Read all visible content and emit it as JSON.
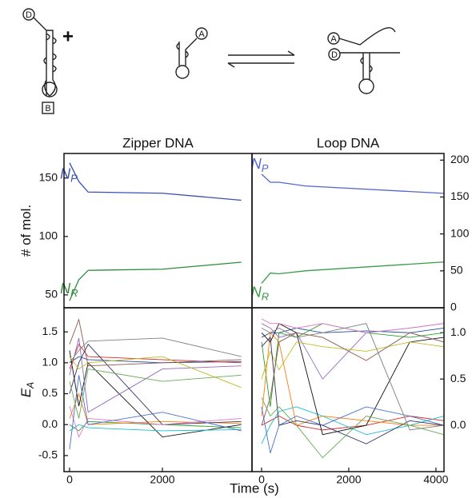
{
  "diagram": {
    "labels": [
      "D",
      "B",
      "A",
      "A",
      "D"
    ],
    "plus": "+"
  },
  "xlabel": "Time (s)",
  "chart_data": [
    {
      "type": "line",
      "title": "Zipper DNA",
      "ylabel": "# of mol.",
      "yaxis": "left",
      "x": [
        0,
        200,
        400,
        2000,
        3700
      ],
      "xlim": [
        -120,
        3930
      ],
      "ylim": [
        39,
        171
      ],
      "yticks": [
        50,
        100,
        150
      ],
      "series": [
        {
          "name": "N",
          "name_sub": "P",
          "color": "#3a4fb0",
          "values": [
            163,
            147,
            138,
            137,
            131
          ]
        },
        {
          "name": "N",
          "name_sub": "R",
          "color": "#2e8b3a",
          "values": [
            45,
            63,
            71,
            72,
            78
          ]
        }
      ]
    },
    {
      "type": "line",
      "title": "Loop DNA",
      "yaxis": "right",
      "x": [
        0,
        200,
        400,
        1000,
        4180
      ],
      "xlim": [
        -220,
        4185
      ],
      "ylim": [
        0,
        209
      ],
      "yticks": [
        0,
        50,
        100,
        150,
        200
      ],
      "series": [
        {
          "name": "N",
          "name_sub": "P",
          "color": "#5566cc",
          "values": [
            181,
            170,
            170,
            165,
            155
          ]
        },
        {
          "name": "N",
          "name_sub": "R",
          "color": "#3c9a48",
          "values": [
            33,
            47,
            46,
            50,
            62
          ]
        }
      ]
    },
    {
      "type": "line",
      "ylabel": "E",
      "ylabel_sub": "A",
      "yaxis": "left",
      "x": [
        0,
        200,
        400,
        2000,
        3700
      ],
      "xlim": [
        -120,
        3930
      ],
      "ylim": [
        -0.76,
        1.89
      ],
      "xticks": [
        0,
        2000
      ],
      "yticks": [
        {
          "value": -0.5,
          "label": "-0.5"
        },
        {
          "value": 0,
          "label": "0.0"
        },
        0.5,
        {
          "value": 1,
          "label": "1.0"
        },
        1.5
      ],
      "series": [
        {
          "color": "#1f4e9c",
          "values": [
            1.0,
            1.1,
            1.05,
            1.0,
            1.02
          ]
        },
        {
          "color": "#d62728",
          "values": [
            0.9,
            1.3,
            1.1,
            1.05,
            1.0
          ]
        },
        {
          "color": "#2ca02c",
          "values": [
            0.0,
            -0.1,
            0.05,
            0.0,
            -0.05
          ]
        },
        {
          "color": "#ff7f0e",
          "values": [
            0.1,
            0.5,
            0.0,
            0.05,
            0.02
          ]
        },
        {
          "color": "#111111",
          "values": [
            1.2,
            0.3,
            1.0,
            -0.2,
            0.0
          ]
        },
        {
          "color": "#9467bd",
          "values": [
            0.8,
            1.4,
            0.2,
            0.9,
            0.95
          ]
        },
        {
          "color": "#17becf",
          "values": [
            -0.1,
            0.0,
            -0.05,
            -0.1,
            -0.08
          ]
        },
        {
          "color": "#333366",
          "values": [
            0.5,
            1.0,
            1.3,
            0.0,
            0.05
          ]
        },
        {
          "color": "#bcbd22",
          "values": [
            1.1,
            0.9,
            1.0,
            1.1,
            0.6
          ]
        },
        {
          "color": "#e377c2",
          "values": [
            0.3,
            -0.2,
            0.1,
            0.0,
            0.1
          ]
        },
        {
          "color": "#8c564b",
          "values": [
            1.3,
            1.7,
            0.95,
            1.0,
            1.05
          ]
        },
        {
          "color": "#4a6fd1",
          "values": [
            -0.4,
            0.8,
            0.0,
            0.2,
            -0.1
          ]
        },
        {
          "color": "#7f7f7f",
          "values": [
            1.0,
            1.2,
            1.35,
            1.4,
            1.1
          ]
        },
        {
          "color": "#66aa55",
          "values": [
            0.7,
            0.1,
            0.9,
            0.7,
            0.8
          ]
        }
      ]
    },
    {
      "type": "line",
      "yaxis": "right",
      "x": [
        0,
        200,
        400,
        800,
        1400,
        2400,
        3400,
        4180
      ],
      "xlim": [
        -220,
        4185
      ],
      "ylim": [
        -0.5,
        1.27
      ],
      "xticks": [
        0,
        2000,
        4000
      ],
      "yticks": [
        {
          "value": 0,
          "label": "0.0"
        },
        0.5,
        {
          "value": 1,
          "label": "1.0"
        }
      ],
      "series": [
        {
          "color": "#1f4e9c",
          "values": [
            0.95,
            1.0,
            1.0,
            1.05,
            1.0,
            1.02,
            1.0,
            1.05
          ]
        },
        {
          "color": "#d62728",
          "values": [
            0.0,
            0.05,
            0.1,
            0.0,
            -0.05,
            0.0,
            0.1,
            0.05
          ]
        },
        {
          "color": "#2ca02c",
          "values": [
            0.9,
            0.2,
            1.0,
            0.95,
            1.1,
            1.0,
            0.95,
            1.0
          ]
        },
        {
          "color": "#ff7f0e",
          "values": [
            0.1,
            1.0,
            0.9,
            0.0,
            0.1,
            0.05,
            0.0,
            0.0
          ]
        },
        {
          "color": "#9467bd",
          "values": [
            1.1,
            1.05,
            0.95,
            1.0,
            0.5,
            1.0,
            1.05,
            1.1
          ]
        },
        {
          "color": "#17becf",
          "values": [
            -0.2,
            0.0,
            0.15,
            0.2,
            0.1,
            -0.1,
            0.0,
            0.1
          ]
        },
        {
          "color": "#111111",
          "values": [
            1.0,
            0.9,
            1.1,
            1.0,
            -0.1,
            0.0,
            0.9,
            0.95
          ]
        },
        {
          "color": "#bcbd22",
          "values": [
            0.5,
            0.8,
            0.6,
            0.9,
            0.85,
            0.8,
            0.9,
            0.85
          ]
        },
        {
          "color": "#4a6fd1",
          "values": [
            0.2,
            -0.3,
            0.0,
            0.1,
            0.0,
            0.2,
            0.1,
            0.0
          ]
        },
        {
          "color": "#e377c2",
          "values": [
            1.15,
            1.1,
            1.1,
            1.05,
            1.1,
            1.0,
            1.05,
            1.1
          ]
        },
        {
          "color": "#333366",
          "values": [
            0.85,
            0.95,
            0.0,
            0.05,
            0.0,
            -0.2,
            0.05,
            0.0
          ]
        },
        {
          "color": "#8c564b",
          "values": [
            0.0,
            0.3,
            0.9,
            1.0,
            0.95,
            0.7,
            1.0,
            0.9
          ]
        },
        {
          "color": "#7f7f7f",
          "values": [
            1.05,
            1.0,
            1.05,
            0.95,
            1.0,
            1.1,
            -0.05,
            0.0
          ]
        },
        {
          "color": "#66aa55",
          "values": [
            0.3,
            0.1,
            0.2,
            0.0,
            -0.35,
            0.1,
            0.0,
            -0.1
          ]
        }
      ]
    }
  ]
}
